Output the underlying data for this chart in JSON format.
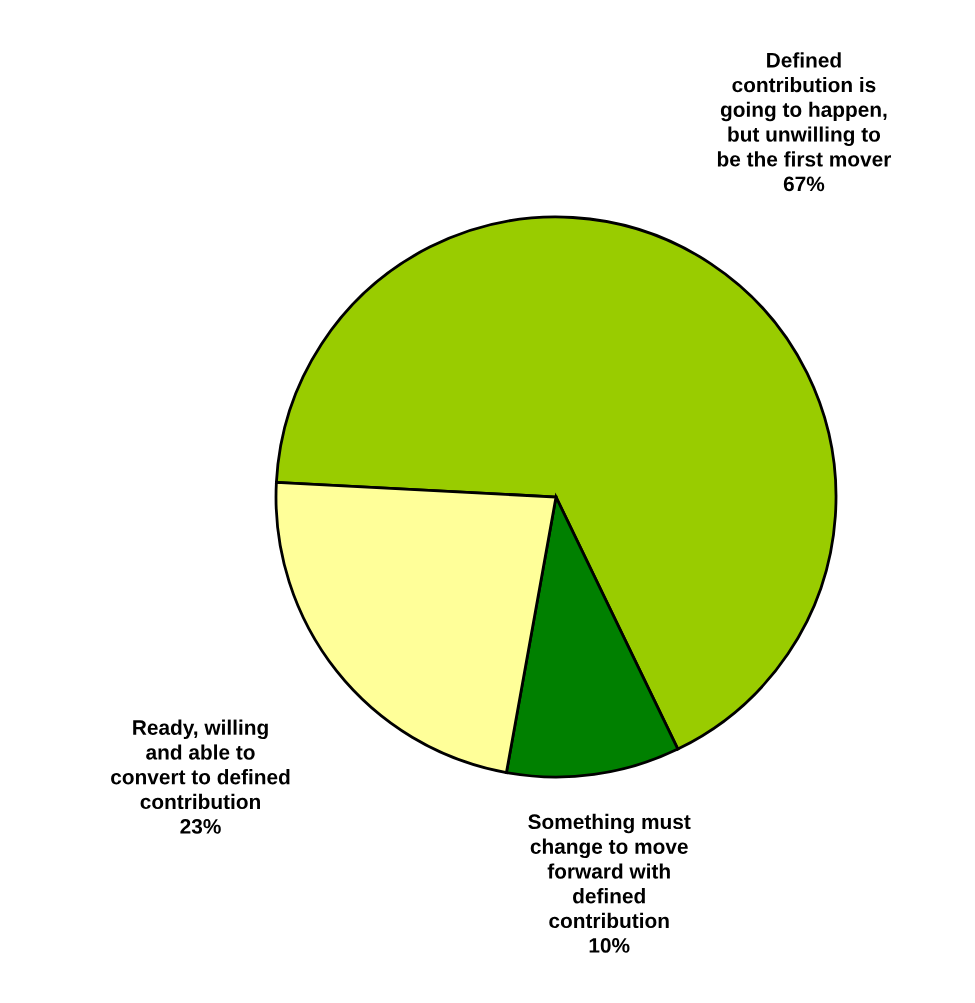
{
  "chart_data": {
    "type": "pie",
    "categories": [
      "Defined\ncontribution is\ngoing to happen,\nbut unwilling to\nbe the first mover",
      "Something must\nchange to move\nforward with\ndefined\ncontribution",
      "Ready, willing\nand able to\nconvert to defined\ncontribution"
    ],
    "values": [
      67,
      10,
      23
    ],
    "value_labels": [
      "67%",
      "10%",
      "23%"
    ],
    "colors": [
      "#99cc00",
      "#008000",
      "#ffff99"
    ],
    "legend": false
  }
}
